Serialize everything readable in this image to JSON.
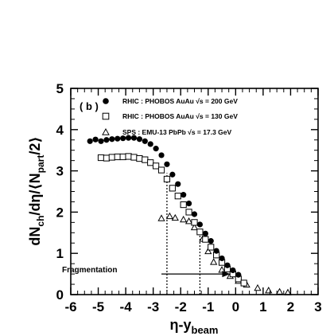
{
  "chart_data": {
    "type": "scatter",
    "panel_label": "( b )",
    "xlim": [
      -6,
      3
    ],
    "ylim": [
      0,
      5
    ],
    "x_ticks": [
      -6,
      -5,
      -4,
      -3,
      -2,
      -1,
      0,
      1,
      2,
      3
    ],
    "y_ticks": [
      0,
      1,
      2,
      3,
      4,
      5
    ],
    "xlabel": {
      "main": "η-y",
      "sub": "beam"
    },
    "ylabel": {
      "a": "dN",
      "a_sub": "ch",
      "b": "/dη/⟨N",
      "b_sub": "part",
      "c": "/2⟩"
    },
    "grid": false,
    "legend_position": "top-right",
    "series": [
      {
        "name": "RHIC : PHOBOS AuAu  √s = 200 GeV",
        "marker": "filled-circle",
        "color": "#000000",
        "x": [
          -5.3,
          -5.1,
          -4.9,
          -4.7,
          -4.5,
          -4.3,
          -4.1,
          -3.9,
          -3.7,
          -3.5,
          -3.3,
          -3.1,
          -2.9,
          -2.7,
          -2.5,
          -2.3,
          -2.1,
          -1.9,
          -1.7,
          -1.5,
          -1.3,
          -1.1,
          -0.9,
          -0.7,
          -0.5,
          -0.3,
          -0.1,
          0.1
        ],
        "y": [
          3.72,
          3.76,
          3.72,
          3.75,
          3.77,
          3.78,
          3.79,
          3.8,
          3.8,
          3.77,
          3.72,
          3.65,
          3.54,
          3.38,
          3.16,
          2.91,
          2.68,
          2.42,
          2.21,
          1.95,
          1.7,
          1.48,
          1.3,
          1.06,
          0.88,
          0.71,
          0.59,
          0.48
        ]
      },
      {
        "name": "RHIC : PHOBOS AuAu  √s = 130 GeV",
        "marker": "open-square",
        "color": "#000000",
        "x": [
          -4.9,
          -4.7,
          -4.5,
          -4.3,
          -4.1,
          -3.9,
          -3.7,
          -3.5,
          -3.3,
          -3.1,
          -2.9,
          -2.7,
          -2.5,
          -2.3,
          -2.1,
          -1.9,
          -1.7,
          -1.5,
          -1.3,
          -1.1,
          -0.9,
          -0.7,
          -0.5,
          -0.3,
          -0.1,
          0.1,
          0.3
        ],
        "y": [
          3.32,
          3.31,
          3.33,
          3.34,
          3.34,
          3.35,
          3.33,
          3.3,
          3.27,
          3.2,
          3.12,
          3.02,
          2.8,
          2.58,
          2.39,
          2.18,
          2.0,
          1.75,
          1.52,
          1.34,
          1.15,
          0.96,
          0.78,
          0.62,
          0.5,
          0.38,
          0.28
        ]
      },
      {
        "name": "SPS : EMU-13 PbPb  √s = 17.3 GeV",
        "marker": "open-triangle",
        "color": "#000000",
        "x": [
          -2.7,
          -2.4,
          -2.2,
          -1.9,
          -1.7,
          -1.5,
          -1.2,
          -1.0,
          -0.8,
          -0.5,
          -0.2,
          0.1,
          0.4,
          0.8,
          1.2,
          1.6,
          1.9
        ],
        "y": [
          1.85,
          1.9,
          1.86,
          1.82,
          1.78,
          1.63,
          1.35,
          1.05,
          0.79,
          0.6,
          0.45,
          0.33,
          0.24,
          0.16,
          0.1,
          0.07,
          0.05
        ]
      }
    ],
    "reference_lines": [
      {
        "x": -2.5,
        "y_top": 2.95,
        "style": "dotted"
      },
      {
        "x": -1.3,
        "y_top": 1.5,
        "style": "dotted"
      }
    ],
    "annotation": {
      "text": "Fragmentation",
      "arrow_from_x": -2.7,
      "arrow_to_x": -0.2,
      "arrow_y": 0.5
    }
  }
}
